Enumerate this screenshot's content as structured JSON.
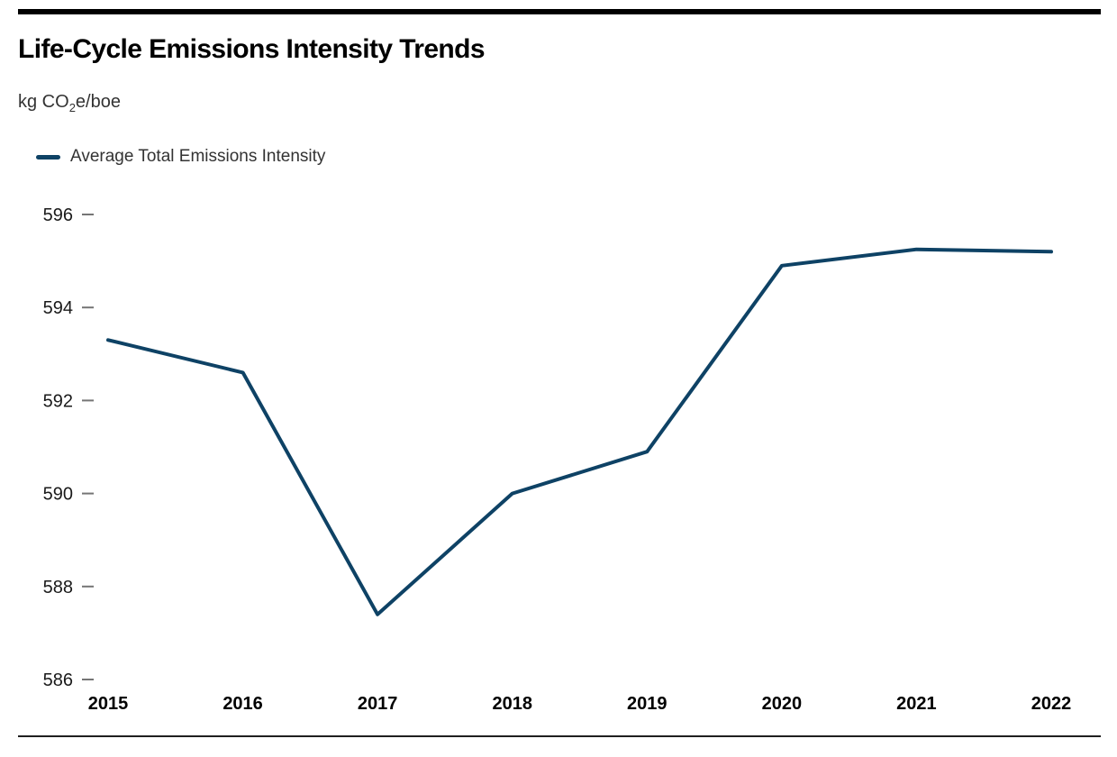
{
  "header": {
    "title": "Life-Cycle Emissions Intensity Trends",
    "unit_label": {
      "prefix": "kg CO",
      "sub": "2",
      "suffix": "e/boe"
    }
  },
  "legend": {
    "label": "Average Total Emissions Intensity"
  },
  "colors": {
    "line": "#0e4265",
    "top_bar": "#000000",
    "bottom_rule": "#1f1f1f",
    "tick_dash": "#757575",
    "tick_text": "#1a1a1a",
    "x_label_text": "#000000",
    "secondary_text": "#333333"
  },
  "chart_data": {
    "type": "line",
    "title": "Life-Cycle Emissions Intensity Trends",
    "ylabel": "kg CO2e/boe",
    "xlabel": "",
    "x": [
      2015,
      2016,
      2017,
      2018,
      2019,
      2020,
      2021,
      2022
    ],
    "series": [
      {
        "name": "Average Total Emissions Intensity",
        "values": [
          593.3,
          592.6,
          587.4,
          590.0,
          590.9,
          594.9,
          595.25,
          595.2
        ]
      }
    ],
    "ylim": [
      586,
      596
    ],
    "yticks": [
      586,
      588,
      590,
      592,
      594,
      596
    ],
    "grid": false,
    "legend_position": "top-left",
    "line_width": 4
  }
}
